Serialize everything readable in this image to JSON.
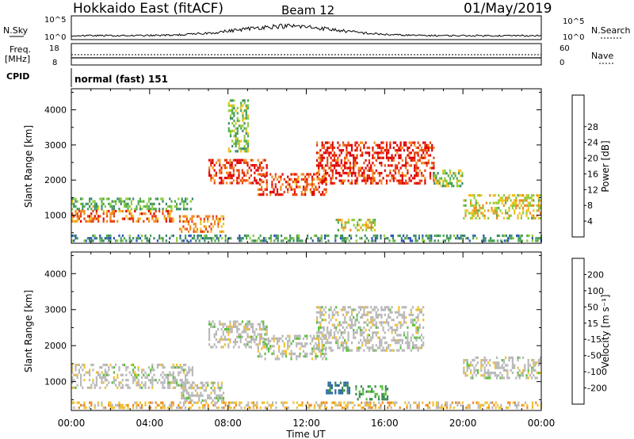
{
  "header": {
    "station": "Hokkaido East (fitACF)",
    "beam": "Beam 12",
    "date": "01/May/2019"
  },
  "top_panels": {
    "nsky_label": "N.Sky",
    "nsearch_label": "N.Search",
    "freq_label": "Freq.",
    "freq_unit": "[MHz]",
    "nave_label": "Nave",
    "cpid_label": "CPID",
    "cpid_value": "normal (fast) 151",
    "noise_ticks": [
      "10^5",
      "10^0"
    ],
    "noise_right_ticks": [
      "10^5",
      "10^0"
    ],
    "freq_ticks": [
      "18",
      "8"
    ],
    "nave_ticks": [
      "60",
      "0"
    ]
  },
  "chart_data": [
    {
      "type": "heatmap",
      "title": "",
      "xlabel": "Time UT",
      "ylabel": "Slant Range [km]",
      "x_ticks": [
        "00:00",
        "04:00",
        "08:00",
        "12:00",
        "16:00",
        "20:00",
        "00:00"
      ],
      "xlim_hours": [
        0,
        24
      ],
      "y_ticks": [
        1000,
        2000,
        3000,
        4000
      ],
      "ylim": [
        200,
        4600
      ],
      "colorbar": {
        "label": "Power [dB]",
        "ticks": [
          "4",
          "8",
          "12",
          "16",
          "20",
          "24",
          "28"
        ],
        "colors": [
          "#0a1ee0",
          "#2a56b8",
          "#3a8a6a",
          "#4fa84f",
          "#8ccd3c",
          "#f0c01c",
          "#f08a1e",
          "#e8400f",
          "#e00000"
        ]
      },
      "regions": [
        {
          "t0": 0.0,
          "t1": 6.2,
          "r0": 1150,
          "r1": 1500,
          "value": 12
        },
        {
          "t0": 0.0,
          "t1": 5.2,
          "r0": 850,
          "r1": 1150,
          "value": 23
        },
        {
          "t0": 5.5,
          "t1": 7.8,
          "r0": 500,
          "r1": 1000,
          "value": 22
        },
        {
          "t0": 7.0,
          "t1": 10.0,
          "r0": 1950,
          "r1": 2600,
          "value": 26
        },
        {
          "t0": 9.5,
          "t1": 13.0,
          "r0": 1600,
          "r1": 2200,
          "value": 25
        },
        {
          "t0": 12.5,
          "t1": 18.5,
          "r0": 1900,
          "r1": 3100,
          "value": 27
        },
        {
          "t0": 18.5,
          "t1": 20.0,
          "r0": 1800,
          "r1": 2300,
          "value": 14
        },
        {
          "t0": 20.0,
          "t1": 24.0,
          "r0": 900,
          "r1": 1600,
          "value": 18
        },
        {
          "t0": 13.5,
          "t1": 15.5,
          "r0": 550,
          "r1": 900,
          "value": 17
        },
        {
          "t0": 8.0,
          "t1": 9.0,
          "r0": 2800,
          "r1": 4300,
          "value": 14
        },
        {
          "t0": 0.0,
          "t1": 24.0,
          "r0": 250,
          "r1": 450,
          "value": 10
        }
      ]
    },
    {
      "type": "heatmap",
      "title": "",
      "xlabel": "Time UT",
      "ylabel": "Slant Range [km]",
      "x_ticks": [
        "00:00",
        "04:00",
        "08:00",
        "12:00",
        "16:00",
        "20:00",
        "00:00"
      ],
      "xlim_hours": [
        0,
        24
      ],
      "y_ticks": [
        1000,
        2000,
        3000,
        4000
      ],
      "ylim": [
        200,
        4600
      ],
      "colorbar": {
        "label": "Velocity [m s⁻¹]",
        "ticks": [
          "200",
          "100",
          "50",
          "15",
          "-15",
          "-50",
          "-100",
          "-200"
        ],
        "colors": [
          "#1a2ab0",
          "#2a6aa0",
          "#3a8a50",
          "#5abf3a",
          "#b8b8b8",
          "#f0c030",
          "#f08a1e",
          "#e8400f",
          "#e00000"
        ]
      },
      "regions": [
        {
          "t0": 0.0,
          "t1": 6.2,
          "r0": 800,
          "r1": 1500,
          "value": 0
        },
        {
          "t0": 5.5,
          "t1": 7.8,
          "r0": 500,
          "r1": 1000,
          "value": 0
        },
        {
          "t0": 7.0,
          "t1": 10.0,
          "r0": 1950,
          "r1": 2700,
          "value": 0
        },
        {
          "t0": 9.5,
          "t1": 13.0,
          "r0": 1600,
          "r1": 2300,
          "value": 0
        },
        {
          "t0": 12.5,
          "t1": 18.0,
          "r0": 1900,
          "r1": 3100,
          "value": 0
        },
        {
          "t0": 13.0,
          "t1": 14.2,
          "r0": 650,
          "r1": 1000,
          "value": 120
        },
        {
          "t0": 14.5,
          "t1": 16.2,
          "r0": 500,
          "r1": 900,
          "value": 60
        },
        {
          "t0": 20.0,
          "t1": 24.0,
          "r0": 1100,
          "r1": 1700,
          "value": 0
        },
        {
          "t0": 0.0,
          "t1": 24.0,
          "r0": 250,
          "r1": 450,
          "value": -30
        }
      ]
    }
  ]
}
